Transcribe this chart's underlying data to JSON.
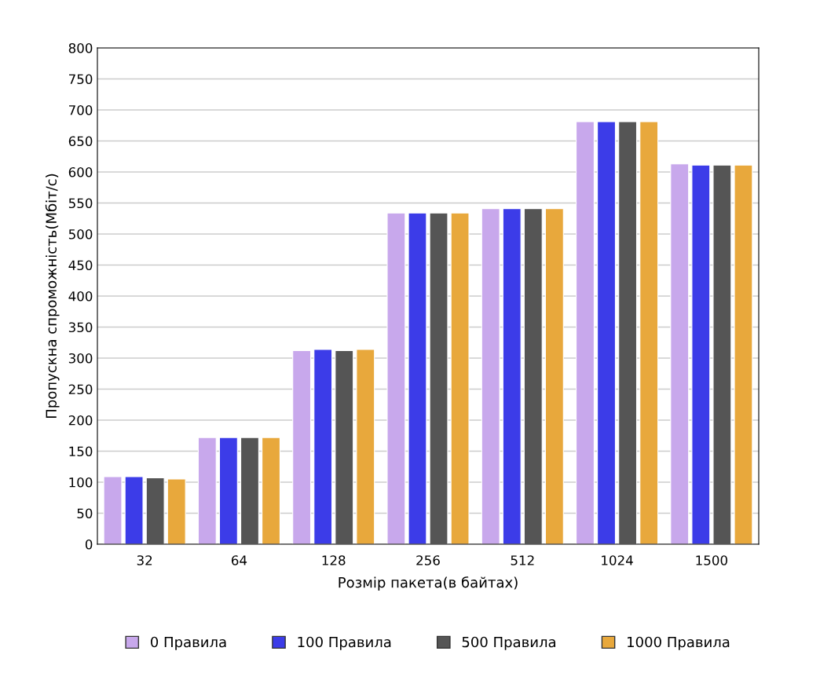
{
  "chart_data": {
    "type": "bar",
    "xlabel": "Розмір пакета(в байтах)",
    "ylabel": "Пропускна спроможність(Мбіт/с)",
    "categories": [
      "32",
      "64",
      "128",
      "256",
      "512",
      "1024",
      "1500"
    ],
    "series": [
      {
        "name": "0 Правила",
        "color": "#c8a8ec",
        "values": [
          109,
          172,
          312,
          534,
          541,
          681,
          613
        ]
      },
      {
        "name": "100 Правила",
        "color": "#3c3ce8",
        "values": [
          109,
          172,
          314,
          534,
          541,
          681,
          611
        ]
      },
      {
        "name": "500 Правила",
        "color": "#555555",
        "values": [
          107,
          172,
          312,
          534,
          541,
          681,
          611
        ]
      },
      {
        "name": "1000 Правила",
        "color": "#e8a83c",
        "values": [
          105,
          172,
          314,
          534,
          541,
          681,
          611
        ]
      }
    ],
    "ylim": [
      0,
      800
    ],
    "yticks": [
      0,
      50,
      100,
      150,
      200,
      250,
      300,
      350,
      400,
      450,
      500,
      550,
      600,
      650,
      700,
      750,
      800
    ],
    "grid": "y",
    "legend": "bottom"
  }
}
